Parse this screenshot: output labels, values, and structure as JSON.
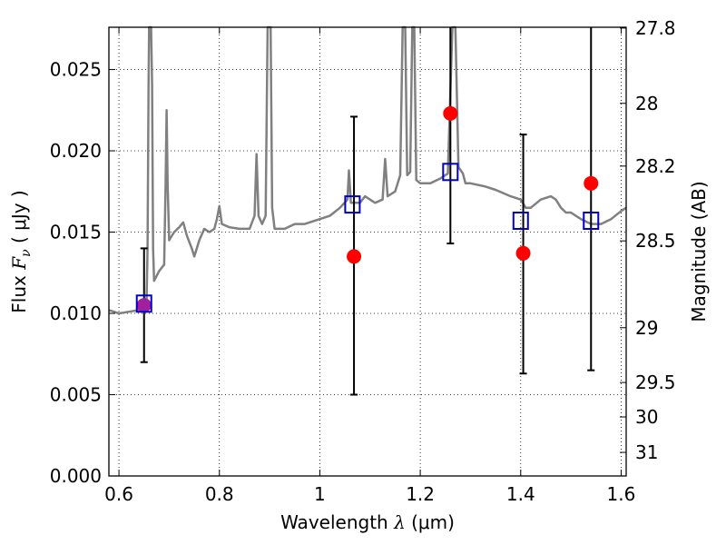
{
  "chart_data": {
    "type": "scatter",
    "xlabel_prefix": "Wavelength  ",
    "xlabel_symbol": "λ",
    "xlabel_unit": " (μm)",
    "ylabel_prefix": "Flux  ",
    "ylabel_symbol": "F",
    "ylabel_sub": "ν",
    "ylabel_unit": "  ( μJy )",
    "ylabel_right": "Magnitude (AB)",
    "xlim": [
      0.58,
      1.61
    ],
    "ylim": [
      0.0,
      0.0276
    ],
    "x_ticks": [
      0.6,
      0.8,
      1.0,
      1.2,
      1.4,
      1.6
    ],
    "x_tick_labels": [
      "0.6",
      "0.8",
      "1",
      "1.2",
      "1.4",
      "1.6"
    ],
    "y_ticks": [
      0.0,
      0.005,
      0.01,
      0.015,
      0.02,
      0.025
    ],
    "y_tick_labels": [
      "0.000",
      "0.005",
      "0.010",
      "0.015",
      "0.020",
      "0.025"
    ],
    "right_ticks": [
      {
        "label": "27.8",
        "flux": 0.02755
      },
      {
        "label": "28",
        "flux": 0.02292
      },
      {
        "label": "28.2",
        "flux": 0.01906
      },
      {
        "label": "28.5",
        "flux": 0.01446
      },
      {
        "label": "29",
        "flux": 0.00912
      },
      {
        "label": "29.5",
        "flux": 0.00575
      },
      {
        "label": "30",
        "flux": 0.00363
      },
      {
        "label": "31",
        "flux": 0.00145
      }
    ],
    "grid": true,
    "colors": {
      "model": "#808080",
      "observed": "#ff0000",
      "synthetic": "#0000cc",
      "overlap": "#a020a0",
      "errorbar": "#000000"
    },
    "observed": [
      {
        "x": 0.65,
        "y": 0.0105,
        "ylow": 0.007,
        "yhigh": 0.014
      },
      {
        "x": 1.068,
        "y": 0.0135,
        "ylow": 0.005,
        "yhigh": 0.0221
      },
      {
        "x": 1.26,
        "y": 0.0223,
        "ylow": 0.0143,
        "yhigh": 0.0276
      },
      {
        "x": 1.405,
        "y": 0.0137,
        "ylow": 0.0063,
        "yhigh": 0.021
      },
      {
        "x": 1.54,
        "y": 0.018,
        "ylow": 0.0065,
        "yhigh": 0.0276
      }
    ],
    "synthetic": [
      {
        "x": 0.65,
        "y": 0.0106
      },
      {
        "x": 1.065,
        "y": 0.0167
      },
      {
        "x": 1.26,
        "y": 0.0187
      },
      {
        "x": 1.4,
        "y": 0.0157
      },
      {
        "x": 1.54,
        "y": 0.0157
      }
    ],
    "model_spectrum": [
      [
        0.58,
        0.0102
      ],
      [
        0.6,
        0.01
      ],
      [
        0.62,
        0.0101
      ],
      [
        0.64,
        0.0102
      ],
      [
        0.65,
        0.0106
      ],
      [
        0.655,
        0.0108
      ],
      [
        0.657,
        0.014
      ],
      [
        0.659,
        0.024
      ],
      [
        0.66,
        0.0276
      ],
      [
        0.664,
        0.0276
      ],
      [
        0.666,
        0.024
      ],
      [
        0.668,
        0.014
      ],
      [
        0.67,
        0.012
      ],
      [
        0.68,
        0.0126
      ],
      [
        0.69,
        0.013
      ],
      [
        0.693,
        0.018
      ],
      [
        0.695,
        0.0225
      ],
      [
        0.697,
        0.018
      ],
      [
        0.7,
        0.0145
      ],
      [
        0.71,
        0.015
      ],
      [
        0.72,
        0.0153
      ],
      [
        0.728,
        0.0156
      ],
      [
        0.735,
        0.0148
      ],
      [
        0.745,
        0.014
      ],
      [
        0.75,
        0.0135
      ],
      [
        0.76,
        0.0145
      ],
      [
        0.77,
        0.0152
      ],
      [
        0.78,
        0.015
      ],
      [
        0.79,
        0.0152
      ],
      [
        0.795,
        0.0158
      ],
      [
        0.8,
        0.0166
      ],
      [
        0.805,
        0.0155
      ],
      [
        0.82,
        0.0153
      ],
      [
        0.84,
        0.0152
      ],
      [
        0.86,
        0.0152
      ],
      [
        0.87,
        0.016
      ],
      [
        0.874,
        0.0198
      ],
      [
        0.878,
        0.016
      ],
      [
        0.885,
        0.0155
      ],
      [
        0.892,
        0.016
      ],
      [
        0.896,
        0.0276
      ],
      [
        0.902,
        0.0276
      ],
      [
        0.905,
        0.0165
      ],
      [
        0.91,
        0.0152
      ],
      [
        0.93,
        0.0152
      ],
      [
        0.95,
        0.0155
      ],
      [
        0.97,
        0.0155
      ],
      [
        1.0,
        0.0158
      ],
      [
        1.02,
        0.016
      ],
      [
        1.04,
        0.0165
      ],
      [
        1.055,
        0.017
      ],
      [
        1.058,
        0.0188
      ],
      [
        1.062,
        0.0168
      ],
      [
        1.08,
        0.0168
      ],
      [
        1.09,
        0.0172
      ],
      [
        1.1,
        0.017
      ],
      [
        1.11,
        0.0168
      ],
      [
        1.125,
        0.017
      ],
      [
        1.13,
        0.0195
      ],
      [
        1.135,
        0.0172
      ],
      [
        1.15,
        0.0175
      ],
      [
        1.16,
        0.0185
      ],
      [
        1.165,
        0.0276
      ],
      [
        1.17,
        0.0276
      ],
      [
        1.174,
        0.0185
      ],
      [
        1.18,
        0.0187
      ],
      [
        1.184,
        0.0276
      ],
      [
        1.188,
        0.0276
      ],
      [
        1.192,
        0.0182
      ],
      [
        1.2,
        0.018
      ],
      [
        1.22,
        0.018
      ],
      [
        1.24,
        0.0183
      ],
      [
        1.255,
        0.0186
      ],
      [
        1.264,
        0.0276
      ],
      [
        1.27,
        0.0276
      ],
      [
        1.276,
        0.019
      ],
      [
        1.285,
        0.0186
      ],
      [
        1.29,
        0.018
      ],
      [
        1.3,
        0.018
      ],
      [
        1.33,
        0.0178
      ],
      [
        1.35,
        0.0176
      ],
      [
        1.38,
        0.0172
      ],
      [
        1.4,
        0.017
      ],
      [
        1.41,
        0.0165
      ],
      [
        1.42,
        0.0165
      ],
      [
        1.44,
        0.017
      ],
      [
        1.46,
        0.0172
      ],
      [
        1.47,
        0.017
      ],
      [
        1.48,
        0.0165
      ],
      [
        1.49,
        0.0162
      ],
      [
        1.5,
        0.0162
      ],
      [
        1.52,
        0.0158
      ],
      [
        1.54,
        0.0155
      ],
      [
        1.56,
        0.0155
      ],
      [
        1.58,
        0.0158
      ],
      [
        1.6,
        0.0163
      ],
      [
        1.61,
        0.0165
      ]
    ]
  }
}
